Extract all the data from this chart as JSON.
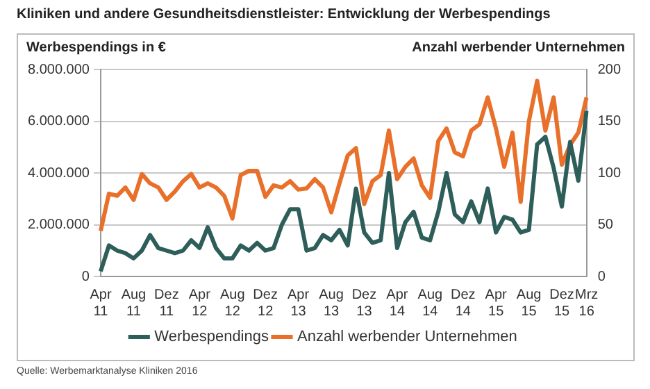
{
  "chart_data": {
    "type": "line",
    "title": "Kliniken und andere Gesundheitsdienstleister: Entwicklung der Werbespendings",
    "ylabel": "Werbespendings in €",
    "y2label": "Anzahl werbender Unternehmen",
    "categories": [
      "Apr 11",
      null,
      null,
      null,
      "Aug 11",
      null,
      null,
      null,
      "Dez 11",
      null,
      null,
      null,
      "Apr 12",
      null,
      null,
      null,
      "Aug 12",
      null,
      null,
      null,
      "Dez 12",
      null,
      null,
      null,
      "Apr 13",
      null,
      null,
      null,
      "Aug 13",
      null,
      null,
      null,
      "Dez 13",
      null,
      null,
      null,
      "Apr 14",
      null,
      null,
      null,
      "Aug 14",
      null,
      null,
      null,
      "Dez 14",
      null,
      null,
      null,
      "Apr 15",
      null,
      null,
      null,
      "Aug 15",
      null,
      null,
      null,
      "Dez 15",
      null,
      null,
      "Mrz 16"
    ],
    "series": [
      {
        "name": "Werbespendings",
        "color": "#2e5e5a",
        "values": [
          200000,
          1200000,
          1000000,
          900000,
          700000,
          1000000,
          1600000,
          1100000,
          1000000,
          900000,
          1000000,
          1400000,
          1100000,
          1900000,
          1100000,
          700000,
          700000,
          1200000,
          1000000,
          1300000,
          1000000,
          1100000,
          2000000,
          2600000,
          2600000,
          1000000,
          1100000,
          1600000,
          1400000,
          1800000,
          1200000,
          3400000,
          1700000,
          1300000,
          1400000,
          4000000,
          1100000,
          2100000,
          2500000,
          1500000,
          1400000,
          2500000,
          4000000,
          2400000,
          2100000,
          2900000,
          2100000,
          3400000,
          1700000,
          2300000,
          2200000,
          1700000,
          1800000,
          5100000,
          5400000,
          4200000,
          2700000,
          5200000,
          3700000,
          6400000
        ]
      },
      {
        "name": "Anzahl werbender Unternehmen",
        "color": "#e8702a",
        "axis": "y2",
        "values": [
          44,
          80,
          78,
          86,
          74,
          99,
          90,
          86,
          74,
          82,
          92,
          99,
          86,
          90,
          86,
          78,
          56,
          98,
          102,
          102,
          77,
          88,
          86,
          92,
          84,
          85,
          94,
          86,
          62,
          90,
          117,
          124,
          70,
          92,
          98,
          141,
          94,
          106,
          114,
          88,
          76,
          131,
          143,
          120,
          116,
          141,
          147,
          173,
          143,
          106,
          139,
          72,
          150,
          189,
          141,
          173,
          108,
          127,
          139,
          173
        ]
      }
    ],
    "ylim": [
      0,
      8000000
    ],
    "yticks": [
      {
        "value": 0,
        "label": "0"
      },
      {
        "value": 2000000,
        "label": "2.000.000"
      },
      {
        "value": 4000000,
        "label": "4.000.000"
      },
      {
        "value": 6000000,
        "label": "6.000.000"
      },
      {
        "value": 8000000,
        "label": "8.000.000"
      }
    ],
    "y2lim": [
      0,
      200
    ],
    "y2ticks": [
      0,
      50,
      100,
      150,
      200
    ],
    "grid": "y",
    "legend": "bottom",
    "marker": "none",
    "line_style": "solid",
    "annotations": [
      "Quelle: Werbemarktanalyse Kliniken 2016"
    ]
  }
}
